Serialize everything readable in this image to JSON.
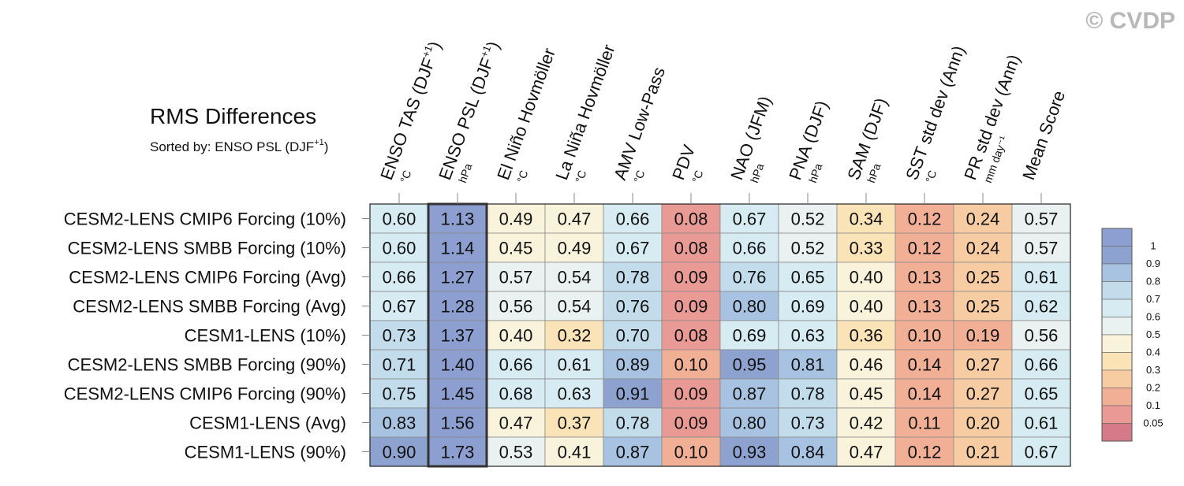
{
  "watermark": "© CVDP",
  "chart_data": {
    "type": "heatmap",
    "title": "RMS Differences",
    "subtitle_prefix": "Sorted by: ENSO PSL (DJF",
    "subtitle_sup": "+1",
    "subtitle_suffix": ")",
    "sorted_by_column": 1,
    "columns": [
      {
        "label": "ENSO TAS (DJF",
        "sup": "+1",
        "suffix": ")",
        "unit": "°C"
      },
      {
        "label": "ENSO PSL (DJF",
        "sup": "+1",
        "suffix": ")",
        "unit": "hPa"
      },
      {
        "label": "El Niño Hovmöller",
        "sup": "",
        "suffix": "",
        "unit": "°C"
      },
      {
        "label": "La Niña Hovmöller",
        "sup": "",
        "suffix": "",
        "unit": "°C"
      },
      {
        "label": "AMV Low-Pass",
        "sup": "",
        "suffix": "",
        "unit": "°C"
      },
      {
        "label": "PDV",
        "sup": "",
        "suffix": "",
        "unit": "°C"
      },
      {
        "label": "NAO (JFM)",
        "sup": "",
        "suffix": "",
        "unit": "hPa"
      },
      {
        "label": "PNA (DJF)",
        "sup": "",
        "suffix": "",
        "unit": "hPa"
      },
      {
        "label": "SAM (DJF)",
        "sup": "",
        "suffix": "",
        "unit": "hPa"
      },
      {
        "label": "SST std dev (Ann)",
        "sup": "",
        "suffix": "",
        "unit": "°C"
      },
      {
        "label": "PR std dev (Ann)",
        "sup": "",
        "suffix": "",
        "unit": "mm day⁻¹"
      },
      {
        "label": "Mean Score",
        "sup": "",
        "suffix": "",
        "unit": ""
      }
    ],
    "rows": [
      {
        "label": "CESM2-LENS CMIP6 Forcing (10%)",
        "values": [
          0.6,
          1.13,
          0.49,
          0.47,
          0.66,
          0.08,
          0.67,
          0.52,
          0.34,
          0.12,
          0.24,
          0.57
        ]
      },
      {
        "label": "CESM2-LENS SMBB Forcing (10%)",
        "values": [
          0.6,
          1.14,
          0.45,
          0.49,
          0.67,
          0.08,
          0.66,
          0.52,
          0.33,
          0.12,
          0.24,
          0.57
        ]
      },
      {
        "label": "CESM2-LENS CMIP6 Forcing (Avg)",
        "values": [
          0.66,
          1.27,
          0.57,
          0.54,
          0.78,
          0.09,
          0.76,
          0.65,
          0.4,
          0.13,
          0.25,
          0.61
        ]
      },
      {
        "label": "CESM2-LENS SMBB Forcing (Avg)",
        "values": [
          0.67,
          1.28,
          0.56,
          0.54,
          0.76,
          0.09,
          0.8,
          0.69,
          0.4,
          0.13,
          0.25,
          0.62
        ]
      },
      {
        "label": "CESM1-LENS (10%)",
        "values": [
          0.73,
          1.37,
          0.4,
          0.32,
          0.7,
          0.08,
          0.69,
          0.63,
          0.36,
          0.1,
          0.19,
          0.56
        ]
      },
      {
        "label": "CESM2-LENS SMBB Forcing (90%)",
        "values": [
          0.71,
          1.4,
          0.66,
          0.61,
          0.89,
          0.1,
          0.95,
          0.81,
          0.46,
          0.14,
          0.27,
          0.66
        ]
      },
      {
        "label": "CESM2-LENS CMIP6 Forcing (90%)",
        "values": [
          0.75,
          1.45,
          0.68,
          0.63,
          0.91,
          0.09,
          0.87,
          0.78,
          0.45,
          0.14,
          0.27,
          0.65
        ]
      },
      {
        "label": "CESM1-LENS (Avg)",
        "values": [
          0.83,
          1.56,
          0.47,
          0.37,
          0.78,
          0.09,
          0.8,
          0.73,
          0.42,
          0.11,
          0.2,
          0.61
        ]
      },
      {
        "label": "CESM1-LENS (90%)",
        "values": [
          0.9,
          1.73,
          0.53,
          0.41,
          0.87,
          0.1,
          0.93,
          0.84,
          0.47,
          0.12,
          0.21,
          0.67
        ]
      }
    ],
    "colorbar": {
      "ticks": [
        "1",
        "0.9",
        "0.8",
        "0.7",
        "0.6",
        "0.5",
        "0.4",
        "0.3",
        "0.2",
        "0.1",
        "0.05"
      ],
      "bounds": [
        0.05,
        0.1,
        0.2,
        0.3,
        0.4,
        0.5,
        0.6,
        0.7,
        0.8,
        0.9,
        1
      ],
      "colors": [
        "#d47a88",
        "#e99a94",
        "#f1b096",
        "#f7cca3",
        "#fbe3b8",
        "#f9f3dc",
        "#eaf1f1",
        "#d6ebf2",
        "#c2dcec",
        "#a7c3e1",
        "#8ea2d0",
        "#8c9fd0"
      ]
    }
  }
}
